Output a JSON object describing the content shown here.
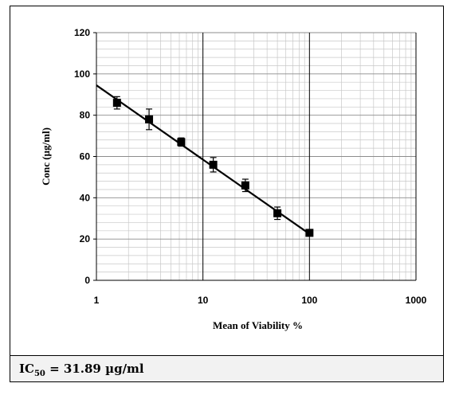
{
  "chart_data": {
    "type": "scatter",
    "title": "",
    "xlabel": "Mean of Viability %",
    "ylabel": "Conc (µg/ml)",
    "x_scale": "log",
    "xlim": [
      1,
      1000
    ],
    "ylim": [
      0,
      120
    ],
    "x_ticks": [
      "1",
      "10",
      "100",
      "1000"
    ],
    "y_ticks": [
      "0",
      "20",
      "40",
      "60",
      "80",
      "100",
      "120"
    ],
    "grid": true,
    "legend": "none",
    "series": [
      {
        "x": [
          1.56,
          3.12,
          6.25,
          12.5,
          25,
          50,
          100
        ],
        "y": [
          86,
          78,
          67,
          56,
          46,
          32.5,
          23
        ],
        "error": [
          3,
          5,
          2,
          3.5,
          3,
          3,
          1
        ],
        "color": "#000000",
        "marker": "square"
      }
    ],
    "trendline": {
      "x": [
        1,
        100
      ],
      "y": [
        94.5,
        22.5
      ],
      "color": "#000000"
    }
  },
  "ic50": {
    "prefix": "IC",
    "subscript": "50",
    "value_text": " = 31.89 µg/ml"
  }
}
